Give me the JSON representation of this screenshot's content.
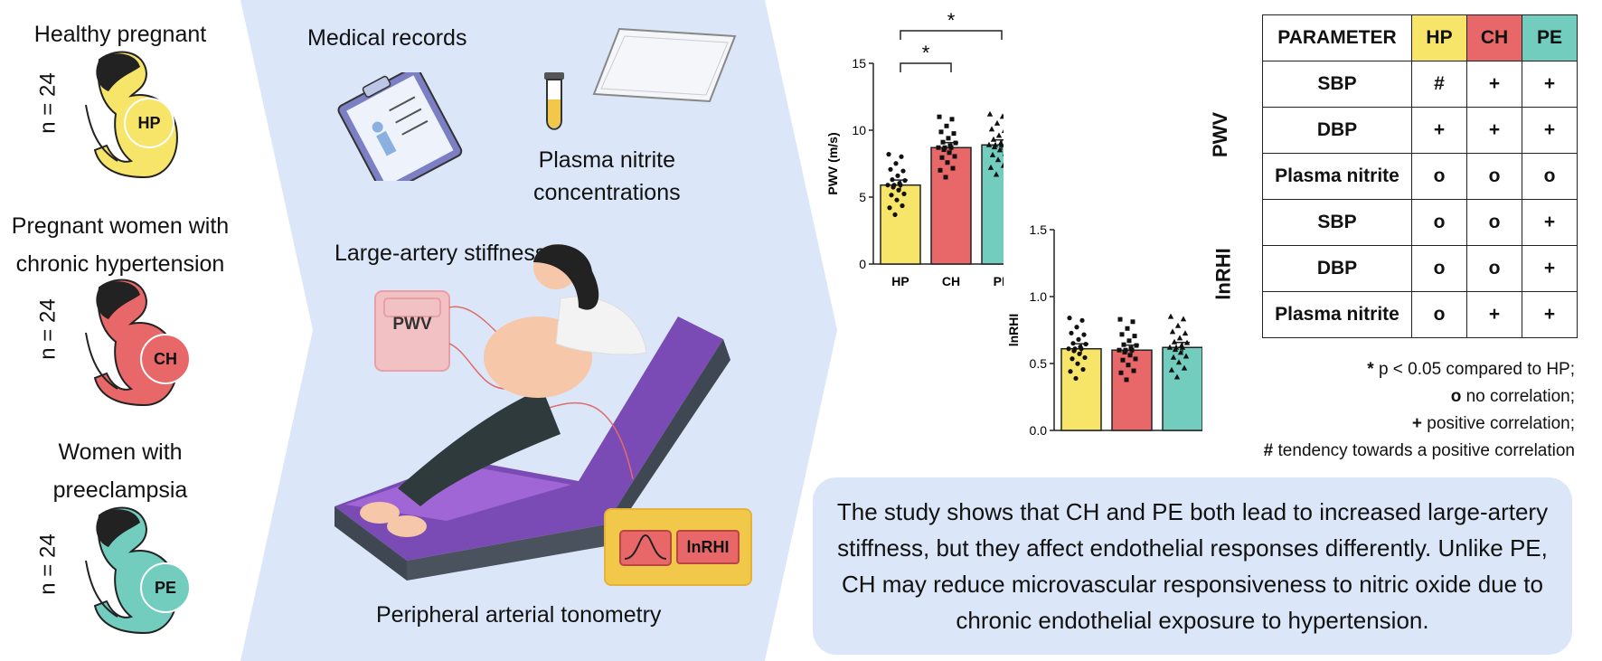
{
  "groups": [
    {
      "title": "Healthy pregnant",
      "n": "n = 24",
      "code": "HP",
      "color": "#f7e56a"
    },
    {
      "title_line1": "Pregnant women with",
      "title_line2": "chronic hypertension",
      "n": "n = 24",
      "code": "CH",
      "color": "#e8686a"
    },
    {
      "title_line1": "Women with",
      "title_line2": "preeclampsia",
      "n": "n = 24",
      "code": "PE",
      "color": "#72cdbf"
    }
  ],
  "methods": {
    "medical_records": "Medical records",
    "plasma_line1": "Plasma nitrite",
    "plasma_line2": "concentrations",
    "stiffness": "Large-artery stiffness",
    "pwv_device": "PWV",
    "tonometry": "Peripheral arterial tonometry",
    "lnrhi_device": "lnRHI"
  },
  "chart_data": [
    {
      "type": "bar",
      "categories": [
        "HP",
        "CH",
        "PE"
      ],
      "values": [
        5.9,
        8.7,
        8.9
      ],
      "ylabel": "PWV (m/s)",
      "ylim": [
        0,
        15
      ],
      "yticks": [
        "0",
        "5",
        "10",
        "15"
      ],
      "significance": [
        "*",
        "*"
      ],
      "colors": [
        "#f7e56a",
        "#e8686a",
        "#72cdbf"
      ]
    },
    {
      "type": "bar",
      "categories": [
        "HP",
        "CH",
        "PE"
      ],
      "values": [
        0.61,
        0.6,
        0.62
      ],
      "ylabel": "lnRHI",
      "ylim": [
        0,
        1.5
      ],
      "yticks": [
        "0.0",
        "0.5",
        "1.0",
        "1.5"
      ],
      "colors": [
        "#f7e56a",
        "#e8686a",
        "#72cdbf"
      ]
    }
  ],
  "table": {
    "header": [
      "PARAMETER",
      "HP",
      "CH",
      "PE"
    ],
    "sections": [
      {
        "label": "PWV",
        "rows": [
          [
            "SBP",
            "#",
            "+",
            "+"
          ],
          [
            "DBP",
            "+",
            "+",
            "+"
          ],
          [
            "Plasma nitrite",
            "o",
            "o",
            "o"
          ]
        ]
      },
      {
        "label": "lnRHI",
        "rows": [
          [
            "SBP",
            "o",
            "o",
            "+"
          ],
          [
            "DBP",
            "o",
            "o",
            "+"
          ],
          [
            "Plasma nitrite",
            "o",
            "+",
            "+"
          ]
        ]
      }
    ]
  },
  "legend": [
    {
      "sym": "*",
      "text": "p < 0.05 compared to HP;"
    },
    {
      "sym": "o",
      "text": "no correlation;"
    },
    {
      "sym": "+",
      "text": "positive correlation;"
    },
    {
      "sym": "#",
      "text": "tendency towards a positive correlation"
    }
  ],
  "conclusion": "The study shows that CH and PE both lead to increased large-artery stiffness, but they affect endothelial responses differently. Unlike PE, CH may reduce microvascular responsiveness to nitric oxide due to chronic endothelial exposure to hypertension."
}
